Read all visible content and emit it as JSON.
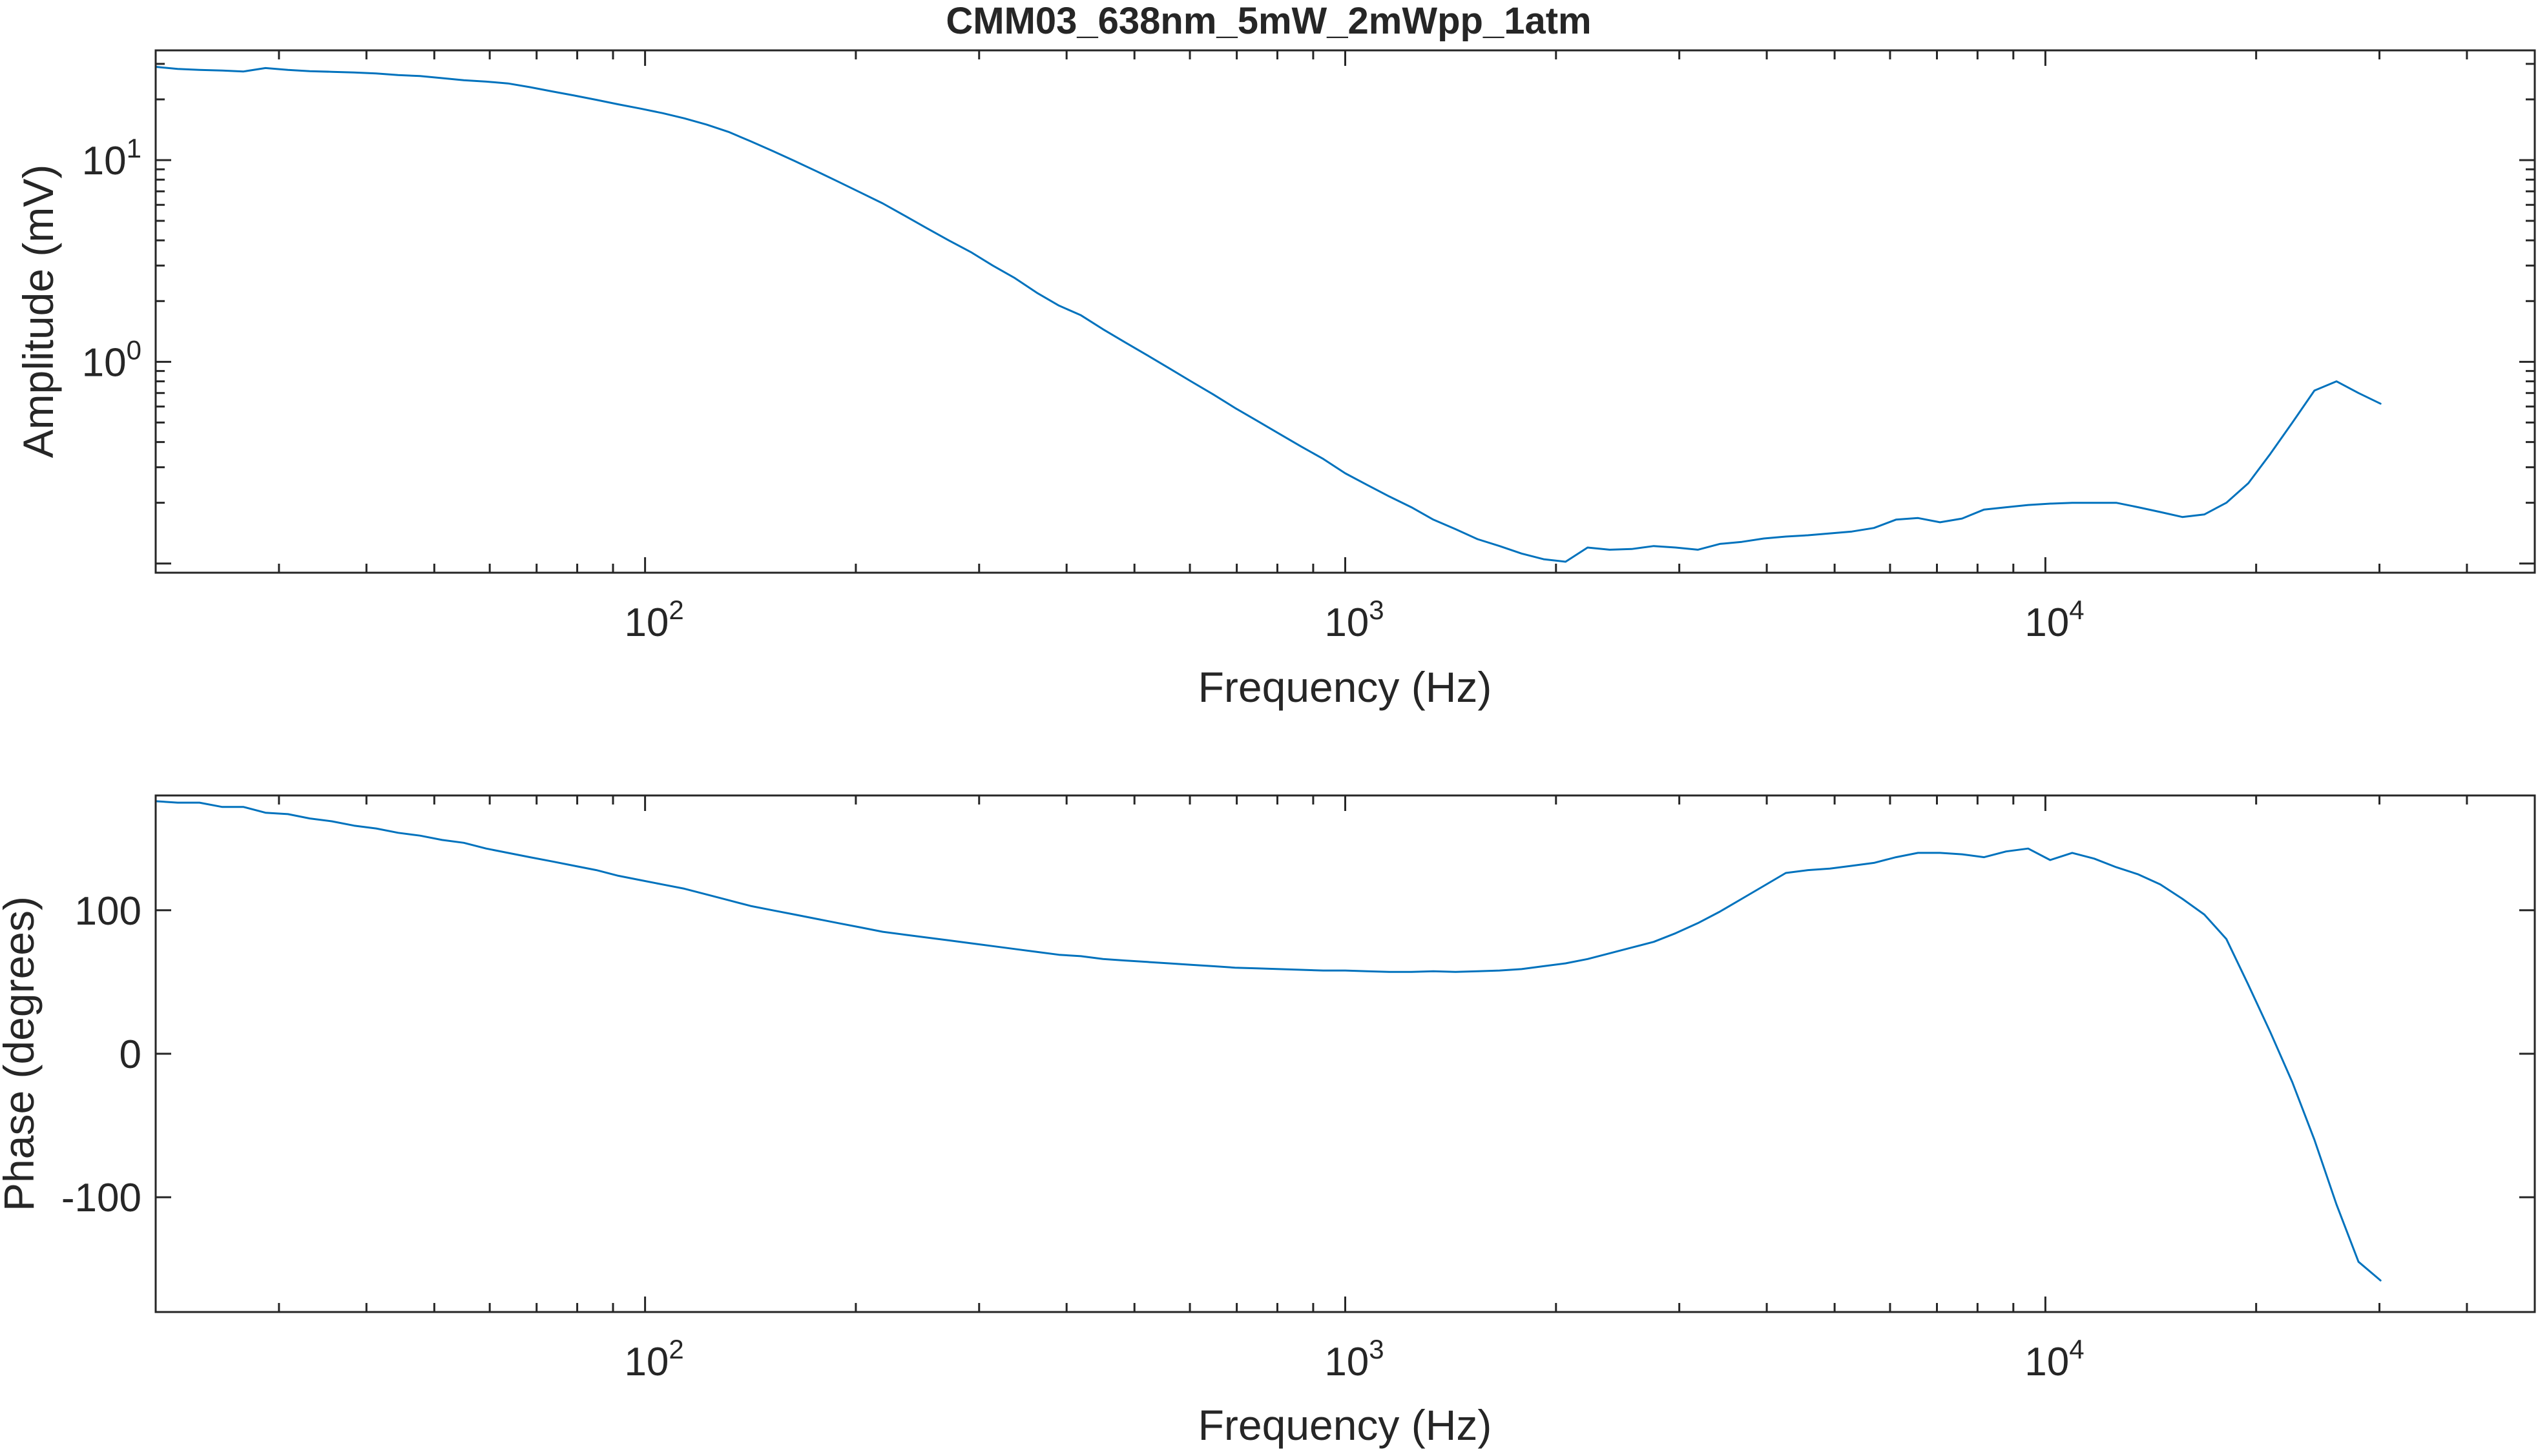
{
  "figure": {
    "title": "CMM03_638nm_5mW_2mWpp_1atm"
  },
  "colors": {
    "series": "#0072bd",
    "axes": "#262626",
    "background": "#ffffff"
  },
  "chart_data": [
    {
      "type": "line",
      "panel": "amplitude",
      "title": "CMM03_638nm_5mW_2mWpp_1atm",
      "xlabel": "Frequency (Hz)",
      "ylabel": "Amplitude (mV)",
      "xscale": "log",
      "yscale": "log",
      "xlim": [
        20,
        50000
      ],
      "ylim": [
        0.09,
        35
      ],
      "grid": false,
      "x_ticks": [
        {
          "value": 100,
          "base": "10",
          "exp": "2"
        },
        {
          "value": 1000,
          "base": "10",
          "exp": "3"
        },
        {
          "value": 10000,
          "base": "10",
          "exp": "4"
        }
      ],
      "y_ticks": [
        {
          "value": 1,
          "base": "10",
          "exp": "0"
        },
        {
          "value": 10,
          "base": "10",
          "exp": "1"
        }
      ],
      "series": [
        {
          "x": [
            20,
            21.5,
            23.1,
            24.9,
            26.7,
            28.7,
            30.9,
            33.2,
            35.7,
            38.4,
            41.3,
            44.4,
            47.7,
            51.3,
            55.1,
            59.3,
            63.7,
            68.5,
            73.7,
            79.2,
            85.2,
            91.6,
            98.5,
            105.9,
            113.8,
            122.4,
            131.6,
            141.5,
            152.1,
            163.5,
            175.8,
            189.0,
            203.2,
            218.5,
            234.9,
            252.5,
            271.5,
            291.9,
            313.8,
            337.4,
            362.7,
            390.0,
            419.3,
            450.8,
            484.6,
            521.0,
            560.2,
            602.3,
            647.5,
            696.1,
            748.4,
            804.7,
            865.1,
            930.1,
            1000,
            1075,
            1156,
            1243,
            1336,
            1437,
            1545,
            1661,
            1786,
            1920,
            2064,
            2219,
            2386,
            2565,
            2758,
            2965,
            3188,
            3427,
            3685,
            3962,
            4259,
            4579,
            4923,
            5293,
            5691,
            6118,
            6578,
            7072,
            7603,
            8174,
            8788,
            9448,
            10158,
            10921,
            11742,
            12624,
            13572,
            14592,
            15688,
            16866,
            18133,
            19495,
            20960,
            22534,
            24227,
            26047,
            28004,
            30107
          ],
          "y": [
            29.0,
            28.3,
            28.0,
            27.8,
            27.5,
            28.6,
            28.0,
            27.6,
            27.4,
            27.2,
            26.9,
            26.4,
            26.1,
            25.5,
            24.9,
            24.5,
            24.0,
            23.0,
            21.9,
            20.9,
            19.9,
            18.9,
            18.0,
            17.1,
            16.1,
            15.0,
            13.8,
            12.4,
            11.1,
            9.9,
            8.8,
            7.8,
            6.9,
            6.1,
            5.3,
            4.6,
            4.0,
            3.5,
            3.0,
            2.6,
            2.2,
            1.9,
            1.7,
            1.45,
            1.25,
            1.08,
            0.93,
            0.8,
            0.69,
            0.59,
            0.51,
            0.44,
            0.38,
            0.33,
            0.28,
            0.245,
            0.215,
            0.19,
            0.165,
            0.148,
            0.132,
            0.122,
            0.112,
            0.105,
            0.102,
            0.12,
            0.117,
            0.118,
            0.122,
            0.12,
            0.117,
            0.125,
            0.128,
            0.133,
            0.136,
            0.138,
            0.141,
            0.144,
            0.15,
            0.165,
            0.168,
            0.16,
            0.167,
            0.185,
            0.19,
            0.195,
            0.198,
            0.2,
            0.2,
            0.2,
            0.19,
            0.18,
            0.17,
            0.175,
            0.2,
            0.25,
            0.35,
            0.5,
            0.72,
            0.8,
            0.7,
            0.62
          ]
        }
      ]
    },
    {
      "type": "line",
      "panel": "phase",
      "title": "",
      "xlabel": "Frequency (Hz)",
      "ylabel": "Phase (degrees)",
      "xscale": "log",
      "yscale": "linear",
      "xlim": [
        20,
        50000
      ],
      "ylim": [
        -180,
        180
      ],
      "grid": false,
      "x_ticks": [
        {
          "value": 100,
          "base": "10",
          "exp": "2"
        },
        {
          "value": 1000,
          "base": "10",
          "exp": "3"
        },
        {
          "value": 10000,
          "base": "10",
          "exp": "4"
        }
      ],
      "y_ticks": [
        {
          "value": -100,
          "label": "-100"
        },
        {
          "value": 0,
          "label": "0"
        },
        {
          "value": 100,
          "label": "100"
        }
      ],
      "series": [
        {
          "x": [
            20,
            21.5,
            23.1,
            24.9,
            26.7,
            28.7,
            30.9,
            33.2,
            35.7,
            38.4,
            41.3,
            44.4,
            47.7,
            51.3,
            55.1,
            59.3,
            63.7,
            68.5,
            73.7,
            79.2,
            85.2,
            91.6,
            98.5,
            105.9,
            113.8,
            122.4,
            131.6,
            141.5,
            152.1,
            163.5,
            175.8,
            189.0,
            203.2,
            218.5,
            234.9,
            252.5,
            271.5,
            291.9,
            313.8,
            337.4,
            362.7,
            390.0,
            419.3,
            450.8,
            484.6,
            521.0,
            560.2,
            602.3,
            647.5,
            696.1,
            748.4,
            804.7,
            865.1,
            930.1,
            1000,
            1075,
            1156,
            1243,
            1336,
            1437,
            1545,
            1661,
            1786,
            1920,
            2064,
            2219,
            2386,
            2565,
            2758,
            2965,
            3188,
            3427,
            3685,
            3962,
            4259,
            4579,
            4923,
            5293,
            5691,
            6118,
            6578,
            7072,
            7603,
            8174,
            8788,
            9448,
            10158,
            10921,
            11742,
            12624,
            13572,
            14592,
            15688,
            16866,
            18133,
            19495,
            20960,
            22534,
            24227,
            26047,
            28004,
            30107
          ],
          "y": [
            176,
            175,
            175,
            172,
            172,
            168,
            167,
            164,
            162,
            159,
            157,
            154,
            152,
            149,
            147,
            143,
            140,
            137,
            134,
            131,
            128,
            124,
            121,
            118,
            115,
            111,
            107,
            103,
            100,
            97,
            94,
            91,
            88,
            85,
            83,
            81,
            79,
            77,
            75,
            73,
            71,
            69,
            68,
            66,
            65,
            64,
            63,
            62,
            61,
            60,
            59.5,
            59,
            58.5,
            58,
            58,
            57.5,
            57,
            57,
            57.5,
            57,
            57.5,
            58,
            59,
            61,
            63,
            66,
            70,
            74,
            78,
            84,
            91,
            99,
            108,
            117,
            126,
            128,
            129,
            131,
            133,
            137,
            140,
            140,
            139,
            137,
            141,
            143,
            135,
            140,
            136,
            130,
            125,
            118,
            108,
            97,
            80,
            48,
            15,
            -20,
            -60,
            -105,
            -145,
            -158
          ]
        }
      ]
    }
  ]
}
